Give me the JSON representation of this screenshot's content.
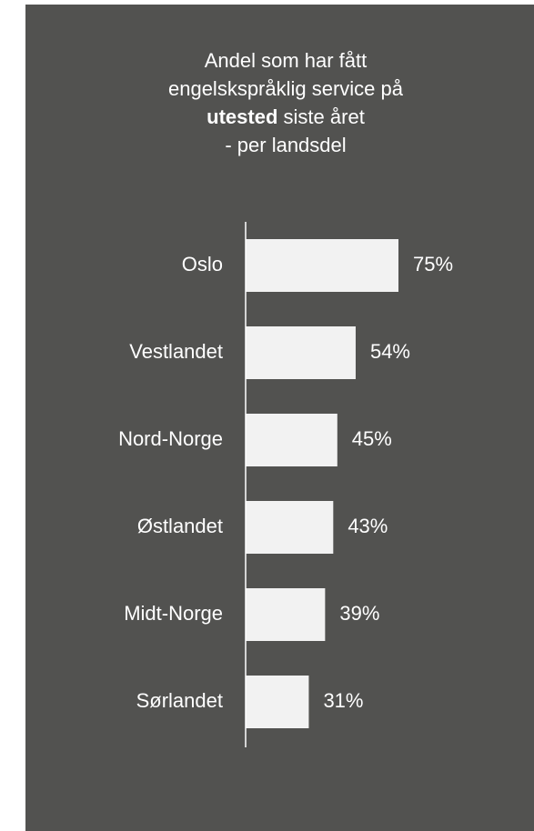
{
  "chart_data": {
    "type": "bar",
    "orientation": "horizontal",
    "title": [
      "Andel som har fått",
      "engelskspråklig service på",
      {
        "bold": "utested",
        "text": "siste året"
      },
      "- per landsdel"
    ],
    "categories": [
      "Oslo",
      "Vestlandet",
      "Nord-Norge",
      "Østlandet",
      "Midt-Norge",
      "Sørlandet"
    ],
    "values": [
      75,
      54,
      45,
      43,
      39,
      31
    ],
    "value_labels": [
      "75%",
      "54%",
      "45%",
      "43%",
      "39%",
      "31%"
    ],
    "color": "#f2f2f2",
    "background": "#525250",
    "xlim": [
      0,
      100
    ]
  }
}
